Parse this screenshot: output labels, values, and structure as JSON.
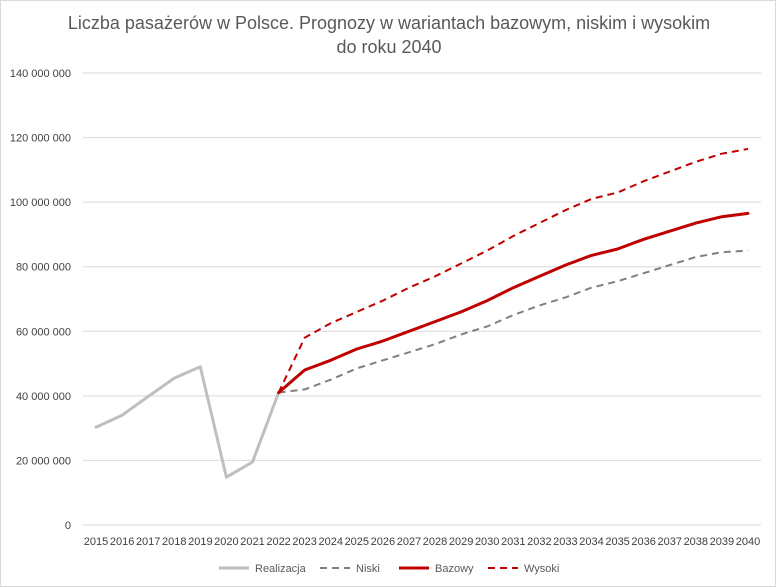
{
  "chart_data": {
    "type": "line",
    "title_lines": [
      "Liczba pasażerów w Polsce. Prognozy w wariantach bazowym, niskim i wysokim",
      "do roku 2040"
    ],
    "xlabel": "",
    "ylabel": "",
    "ylim": [
      0,
      140000000
    ],
    "yticks": [
      0,
      20000000,
      40000000,
      60000000,
      80000000,
      100000000,
      120000000,
      140000000
    ],
    "ytick_labels": [
      "0",
      "20 000 000",
      "40 000 000",
      "60 000 000",
      "80 000 000",
      "100 000 000",
      "120 000 000",
      "140 000 000"
    ],
    "grid": true,
    "legend_position": "bottom",
    "x": [
      "2015",
      "2016",
      "2017",
      "2018",
      "2019",
      "2020",
      "2021",
      "2022",
      "2023",
      "2024",
      "2025",
      "2026",
      "2027",
      "2028",
      "2029",
      "2030",
      "2031",
      "2032",
      "2033",
      "2034",
      "2035",
      "2036",
      "2037",
      "2038",
      "2039",
      "2040"
    ],
    "series": [
      {
        "name": "Realizacja",
        "color": "#bfbfbf",
        "dash": "solid",
        "width": 3,
        "values": [
          30300000,
          34000000,
          39800000,
          45500000,
          49000000,
          14800000,
          19500000,
          41000000,
          null,
          null,
          null,
          null,
          null,
          null,
          null,
          null,
          null,
          null,
          null,
          null,
          null,
          null,
          null,
          null,
          null,
          null
        ]
      },
      {
        "name": "Niski",
        "color": "#808080",
        "dash": "dashed",
        "width": 2,
        "values": [
          null,
          null,
          null,
          null,
          null,
          null,
          null,
          41000000,
          42000000,
          45000000,
          48500000,
          51000000,
          53500000,
          56000000,
          59000000,
          61500000,
          65000000,
          68000000,
          70500000,
          73500000,
          75500000,
          78000000,
          80500000,
          83000000,
          84500000,
          85000000
        ]
      },
      {
        "name": "Bazowy",
        "color": "#c00000",
        "dash": "solid",
        "width": 3,
        "values": [
          null,
          null,
          null,
          null,
          null,
          null,
          null,
          41000000,
          48000000,
          51000000,
          54500000,
          57000000,
          60000000,
          63000000,
          66000000,
          69500000,
          73500000,
          77000000,
          80500000,
          83500000,
          85500000,
          88500000,
          91000000,
          93500000,
          95500000,
          96500000
        ]
      },
      {
        "name": "Wysoki",
        "color": "#c00000",
        "dash": "dashed",
        "width": 2,
        "values": [
          null,
          null,
          null,
          null,
          null,
          null,
          null,
          41000000,
          58000000,
          62500000,
          66000000,
          69500000,
          73500000,
          77000000,
          81000000,
          85000000,
          89500000,
          93500000,
          97500000,
          101000000,
          103000000,
          106500000,
          109500000,
          112500000,
          115000000,
          116500000
        ]
      }
    ]
  }
}
